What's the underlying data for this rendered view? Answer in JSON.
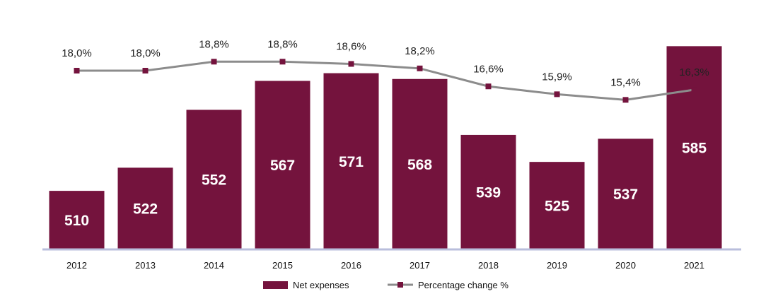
{
  "chart_data": {
    "type": "bar",
    "title": "",
    "xlabel": "",
    "ylabel": "",
    "categories": [
      "2012",
      "2013",
      "2014",
      "2015",
      "2016",
      "2017",
      "2018",
      "2019",
      "2020",
      "2021"
    ],
    "series": [
      {
        "name": "Net expenses",
        "type": "bar",
        "values": [
          510,
          522,
          552,
          567,
          571,
          568,
          539,
          525,
          537,
          585
        ],
        "labels": [
          "510",
          "522",
          "552",
          "567",
          "571",
          "568",
          "539",
          "525",
          "537",
          "585"
        ],
        "color": "#74133d"
      },
      {
        "name": "Percentage change %",
        "type": "line",
        "values": [
          18.0,
          18.0,
          18.8,
          18.8,
          18.6,
          18.2,
          16.6,
          15.9,
          15.4,
          16.3
        ],
        "labels": [
          "18,0%",
          "18,0%",
          "18,8%",
          "18,8%",
          "18,6%",
          "18,2%",
          "16,6%",
          "15,9%",
          "15,4%",
          "16,3%"
        ],
        "line_color": "#8c8c8c",
        "marker_color": "#74133d"
      }
    ],
    "grid": false,
    "legend_position": "bottom-center",
    "axis_line_color": "#b9bedc"
  }
}
